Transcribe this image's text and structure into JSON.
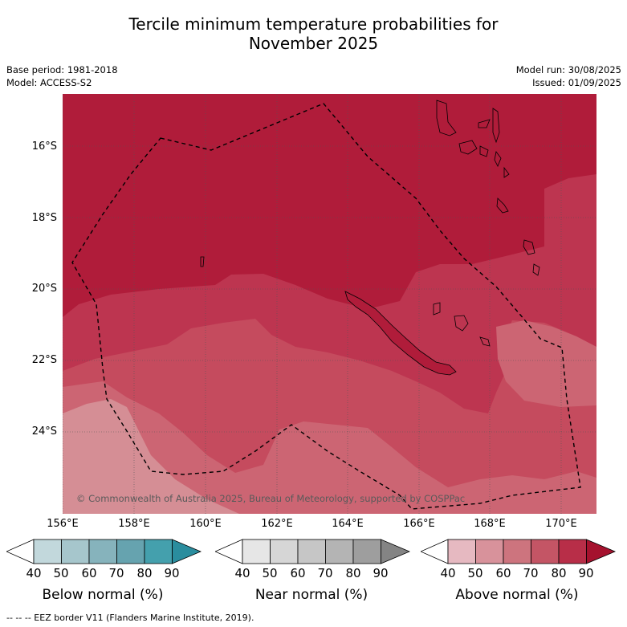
{
  "title_line1": "Tercile minimum temperature probabilities for",
  "title_line2": "November 2025",
  "meta": {
    "base_period": "Base period: 1981-2018",
    "model": "Model: ACCESS-S2",
    "model_run": "Model run: 30/08/2025",
    "issued": "Issued: 01/09/2025"
  },
  "map": {
    "lat_labels": [
      "16°S",
      "18°S",
      "20°S",
      "22°S",
      "24°S"
    ],
    "lon_labels": [
      "156°E",
      "158°E",
      "160°E",
      "162°E",
      "164°E",
      "166°E",
      "168°E",
      "170°E"
    ],
    "copyright": "© Commonwealth of Australia 2025, Bureau of Meteorology, supported by COSPPac",
    "colors": {
      "above_90": "#b01c3a",
      "above_80": "#c03a52",
      "above_70": "#c75060",
      "above_60": "#cd6a76",
      "above_50": "#d68e95"
    }
  },
  "colorbars": [
    {
      "title": "Below normal (%)",
      "ticks": [
        "40",
        "50",
        "60",
        "70",
        "80",
        "90"
      ],
      "colors": [
        "#ffffff",
        "#c2d8dc",
        "#a6c6cc",
        "#86b3bc",
        "#66a3af",
        "#44a0ad",
        "#2a8d9e"
      ]
    },
    {
      "title": "Near normal (%)",
      "ticks": [
        "40",
        "50",
        "60",
        "70",
        "80",
        "90"
      ],
      "colors": [
        "#ffffff",
        "#e6e6e6",
        "#d6d6d6",
        "#c6c6c6",
        "#b4b4b4",
        "#9e9e9e",
        "#848484"
      ]
    },
    {
      "title": "Above normal (%)",
      "ticks": [
        "40",
        "50",
        "60",
        "70",
        "80",
        "90"
      ],
      "colors": [
        "#ffffff",
        "#e6b9c1",
        "#d8929b",
        "#cd747e",
        "#c45565",
        "#b82e48",
        "#a5122e"
      ]
    }
  ],
  "footer": "--  --  -- EEZ border V11 (Flanders Marine Institute, 2019)."
}
